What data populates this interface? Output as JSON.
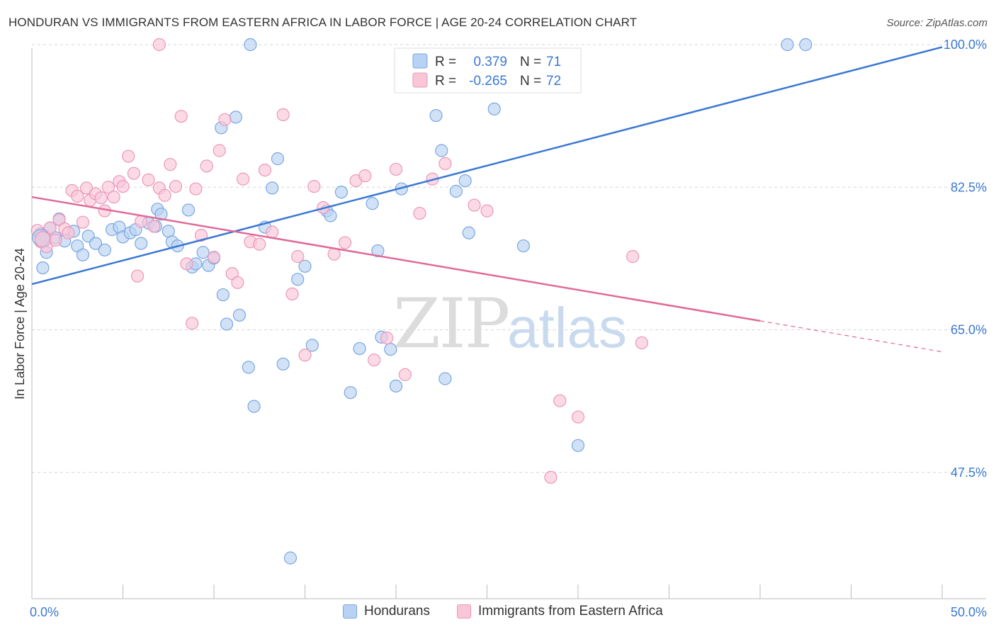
{
  "title": "HONDURAN VS IMMIGRANTS FROM EASTERN AFRICA IN LABOR FORCE | AGE 20-24 CORRELATION CHART",
  "source": "Source: ZipAtlas.com",
  "watermark": {
    "zip": "ZIP",
    "atlas": "atlas"
  },
  "chart_data": {
    "type": "scatter",
    "title": "HONDURAN VS IMMIGRANTS FROM EASTERN AFRICA IN LABOR FORCE | AGE 20-24 CORRELATION CHART",
    "xlabel": "",
    "ylabel": "In Labor Force | Age 20-24",
    "xlim": [
      0,
      50
    ],
    "ylim": [
      32,
      102
    ],
    "x_tick_labels": [
      {
        "value": 0,
        "label": "0.0%"
      },
      {
        "value": 50,
        "label": "50.0%"
      }
    ],
    "y_tick_labels": [
      {
        "value": 100,
        "label": "100.0%"
      },
      {
        "value": 82.5,
        "label": "82.5%"
      },
      {
        "value": 65,
        "label": "65.0%"
      },
      {
        "value": 47.5,
        "label": "47.5%"
      }
    ],
    "legend_position": "top-center",
    "stats": [
      {
        "r_label": "R =",
        "r_value": "0.379",
        "n_label": "N =",
        "n_value": "71"
      },
      {
        "r_label": "R =",
        "r_value": "-0.265",
        "n_label": "N =",
        "n_value": "72"
      }
    ],
    "series": [
      {
        "name": "Hondurans",
        "color": "#3a78d4",
        "fill": "#b8d2f3",
        "stroke": "#7aa6e0",
        "trend": {
          "x0": 0,
          "y0": 70.6,
          "x1": 50,
          "y1": 99.7,
          "solid_until": 50
        },
        "points": [
          [
            0.5,
            76.8
          ],
          [
            0.5,
            76.2
          ],
          [
            0.8,
            74.5
          ],
          [
            0.6,
            72.6
          ],
          [
            1.0,
            77.5
          ],
          [
            1.3,
            76.3
          ],
          [
            1.5,
            78.6
          ],
          [
            1.8,
            75.9
          ],
          [
            2.3,
            77.1
          ],
          [
            2.5,
            75.3
          ],
          [
            2.8,
            74.2
          ],
          [
            3.1,
            76.5
          ],
          [
            3.5,
            75.6
          ],
          [
            4.0,
            74.8
          ],
          [
            4.4,
            77.3
          ],
          [
            4.8,
            77.6
          ],
          [
            5.0,
            76.4
          ],
          [
            5.4,
            76.9
          ],
          [
            5.7,
            77.3
          ],
          [
            6.0,
            75.6
          ],
          [
            6.4,
            78.1
          ],
          [
            6.8,
            77.7
          ],
          [
            6.9,
            79.8
          ],
          [
            7.1,
            79.2
          ],
          [
            7.5,
            77.1
          ],
          [
            7.7,
            75.8
          ],
          [
            8.0,
            75.3
          ],
          [
            8.6,
            79.7
          ],
          [
            8.8,
            72.7
          ],
          [
            9.0,
            73.1
          ],
          [
            9.4,
            74.5
          ],
          [
            9.7,
            72.9
          ],
          [
            10.0,
            73.8
          ],
          [
            10.4,
            89.8
          ],
          [
            10.5,
            69.3
          ],
          [
            10.7,
            65.7
          ],
          [
            11.2,
            91.1
          ],
          [
            11.4,
            66.8
          ],
          [
            11.9,
            60.4
          ],
          [
            12.2,
            55.6
          ],
          [
            12.8,
            77.6
          ],
          [
            13.2,
            82.4
          ],
          [
            13.5,
            86.0
          ],
          [
            13.8,
            60.8
          ],
          [
            14.2,
            37.0
          ],
          [
            14.6,
            71.2
          ],
          [
            15.0,
            72.8
          ],
          [
            15.4,
            63.1
          ],
          [
            16.2,
            79.6
          ],
          [
            16.4,
            79.0
          ],
          [
            17.0,
            81.9
          ],
          [
            17.5,
            57.3
          ],
          [
            18.0,
            62.7
          ],
          [
            18.7,
            80.5
          ],
          [
            19.0,
            74.7
          ],
          [
            19.2,
            64.1
          ],
          [
            19.7,
            62.6
          ],
          [
            20.0,
            58.1
          ],
          [
            20.3,
            82.3
          ],
          [
            22.2,
            91.3
          ],
          [
            22.5,
            87.0
          ],
          [
            22.7,
            59.0
          ],
          [
            23.3,
            82.0
          ],
          [
            23.8,
            83.3
          ],
          [
            24.0,
            76.9
          ],
          [
            25.4,
            92.1
          ],
          [
            27.0,
            75.3
          ],
          [
            30.0,
            50.8
          ],
          [
            41.5,
            100.0
          ],
          [
            42.5,
            100.0
          ],
          [
            12.0,
            100.0
          ]
        ]
      },
      {
        "name": "Immigrants from Eastern Africa",
        "color": "#e06a98",
        "fill": "#f9c6d8",
        "stroke": "#ec97b7",
        "trend": {
          "x0": 0,
          "y0": 81.3,
          "x1": 50,
          "y1": 62.3,
          "solid_until": 40
        },
        "points": [
          [
            0.3,
            77.2
          ],
          [
            0.5,
            75.8
          ],
          [
            0.7,
            76.5
          ],
          [
            0.8,
            75.2
          ],
          [
            1.0,
            77.5
          ],
          [
            1.3,
            76.0
          ],
          [
            1.5,
            78.5
          ],
          [
            1.8,
            77.4
          ],
          [
            2.0,
            76.9
          ],
          [
            2.2,
            82.1
          ],
          [
            2.5,
            81.4
          ],
          [
            2.8,
            78.2
          ],
          [
            3.0,
            82.4
          ],
          [
            3.2,
            80.9
          ],
          [
            3.5,
            81.7
          ],
          [
            3.8,
            81.2
          ],
          [
            4.0,
            79.6
          ],
          [
            4.2,
            82.5
          ],
          [
            4.5,
            81.3
          ],
          [
            4.8,
            83.2
          ],
          [
            5.0,
            82.6
          ],
          [
            5.3,
            86.3
          ],
          [
            5.6,
            84.2
          ],
          [
            5.8,
            71.6
          ],
          [
            6.0,
            78.3
          ],
          [
            6.4,
            83.4
          ],
          [
            6.7,
            77.7
          ],
          [
            7.0,
            82.4
          ],
          [
            7.3,
            81.5
          ],
          [
            7.6,
            85.3
          ],
          [
            7.9,
            82.6
          ],
          [
            8.2,
            91.2
          ],
          [
            8.5,
            73.1
          ],
          [
            8.8,
            65.8
          ],
          [
            9.0,
            82.3
          ],
          [
            9.3,
            76.6
          ],
          [
            9.6,
            85.1
          ],
          [
            10.0,
            73.9
          ],
          [
            10.3,
            87.0
          ],
          [
            10.6,
            90.8
          ],
          [
            11.0,
            71.9
          ],
          [
            11.3,
            70.8
          ],
          [
            11.6,
            83.5
          ],
          [
            12.0,
            75.8
          ],
          [
            12.5,
            75.5
          ],
          [
            12.8,
            84.6
          ],
          [
            13.2,
            77.0
          ],
          [
            13.8,
            91.4
          ],
          [
            14.3,
            69.4
          ],
          [
            14.6,
            74.0
          ],
          [
            15.0,
            61.9
          ],
          [
            15.5,
            82.6
          ],
          [
            16.0,
            80.0
          ],
          [
            16.6,
            74.3
          ],
          [
            17.2,
            75.7
          ],
          [
            17.8,
            83.3
          ],
          [
            18.3,
            83.9
          ],
          [
            18.8,
            61.3
          ],
          [
            19.5,
            64.0
          ],
          [
            20.0,
            84.7
          ],
          [
            20.5,
            59.5
          ],
          [
            21.3,
            79.3
          ],
          [
            22.0,
            83.5
          ],
          [
            22.7,
            85.4
          ],
          [
            24.3,
            80.3
          ],
          [
            25.0,
            79.6
          ],
          [
            28.5,
            46.9
          ],
          [
            29.0,
            56.3
          ],
          [
            30.0,
            54.3
          ],
          [
            33.0,
            74.0
          ],
          [
            33.5,
            63.4
          ],
          [
            7.0,
            100.0
          ]
        ]
      }
    ]
  }
}
